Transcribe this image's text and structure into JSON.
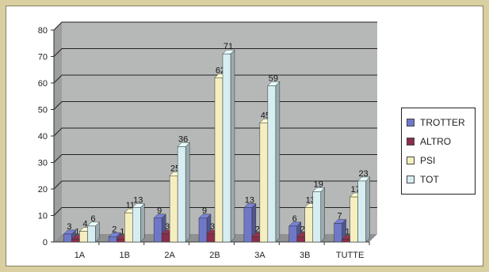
{
  "chart_data": {
    "type": "bar",
    "categories": [
      "1A",
      "1B",
      "2A",
      "2B",
      "3A",
      "3B",
      "TUTTE"
    ],
    "series": [
      {
        "name": "TROTTER",
        "values": [
          3,
          2,
          9,
          9,
          13,
          6,
          7
        ],
        "color": "#6f78c8"
      },
      {
        "name": "ALTRO",
        "values": [
          1,
          1,
          3,
          3,
          2,
          2,
          1
        ],
        "color": "#8a2e4a"
      },
      {
        "name": "PSI",
        "values": [
          4,
          11,
          25,
          62,
          45,
          13,
          17
        ],
        "color": "#f5efc0"
      },
      {
        "name": "TOT",
        "values": [
          6,
          13,
          36,
          71,
          59,
          19,
          23
        ],
        "color": "#d6eef2"
      }
    ],
    "value_labels": [
      [
        "3",
        "2",
        "9",
        "9",
        "13",
        "6",
        "7"
      ],
      [
        "1",
        "1",
        "3",
        "3",
        "2",
        "2",
        "1"
      ],
      [
        "4",
        "11",
        "25",
        "62",
        "45",
        "13",
        "17"
      ],
      [
        "6",
        "13",
        "36",
        "71",
        "59",
        "19",
        "23"
      ]
    ],
    "y_ticks": [
      "0",
      "10",
      "20",
      "30",
      "40",
      "50",
      "60",
      "70",
      "80"
    ],
    "ylim": [
      0,
      80
    ],
    "grid": true,
    "legend_position": "right",
    "plot_background": "#b6b8b8",
    "title": "",
    "xlabel": "",
    "ylabel": ""
  }
}
